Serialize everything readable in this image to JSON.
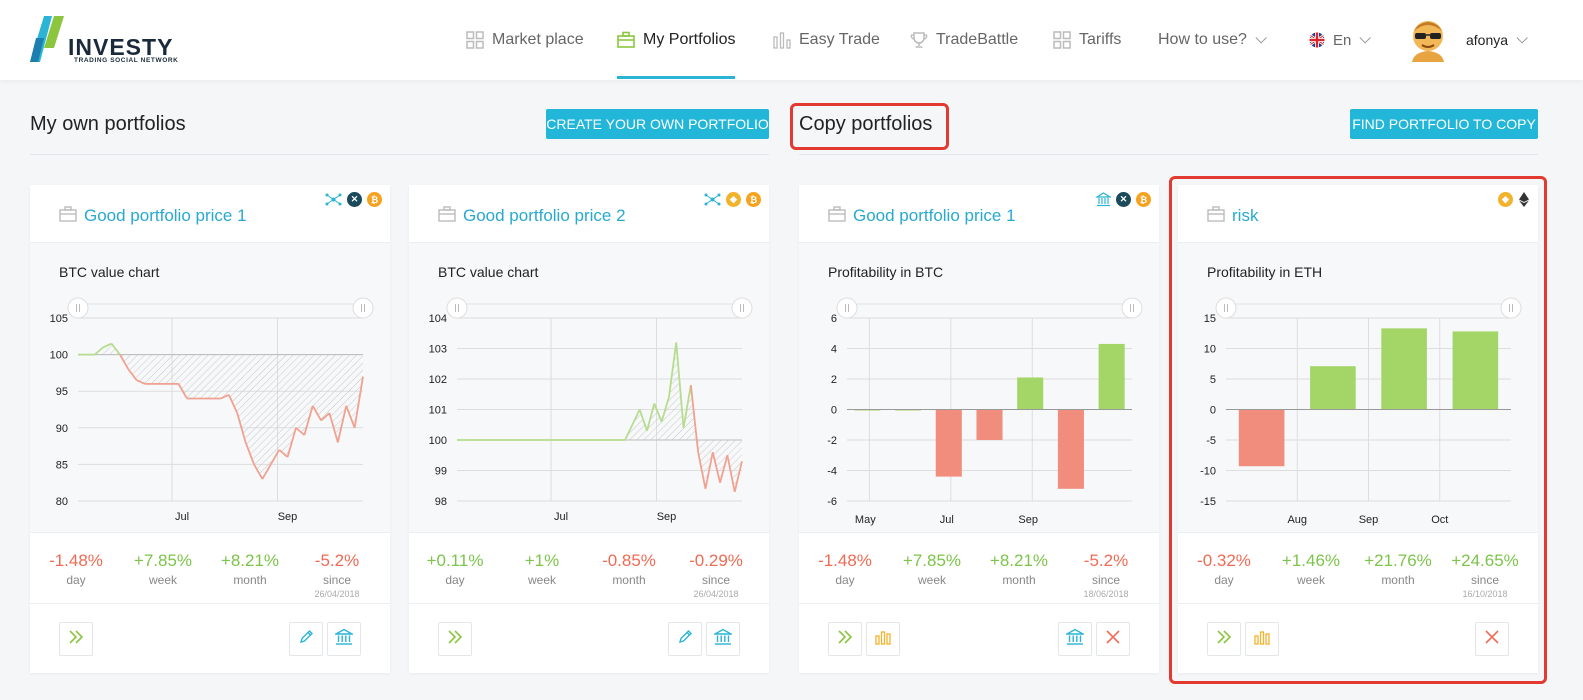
{
  "app": {
    "logo_text": "INVESTY",
    "logo_sub": "TRADING SOCIAL NETWORK"
  },
  "nav": [
    {
      "label": "Market place",
      "icon": "grid-icon"
    },
    {
      "label": "My Portfolios",
      "icon": "briefcase-icon",
      "active": true
    },
    {
      "label": "Easy Trade",
      "icon": "bars-icon"
    },
    {
      "label": "TradeBattle",
      "icon": "trophy-icon"
    },
    {
      "label": "Tariffs",
      "icon": "grid-icon"
    },
    {
      "label": "How to use?",
      "icon": "chevron-down-icon"
    }
  ],
  "lang": "En",
  "user": "afonya",
  "own": {
    "title": "My own portfolios",
    "button": "CREATE YOUR OWN PORTFOLIO"
  },
  "copy": {
    "title": "Copy portfolios",
    "button": "FIND PORTFOLIO TO COPY"
  },
  "colors": {
    "accent": "#22b7d8",
    "positive": "#7cc44a",
    "negative": "#ef6b55",
    "highlight": "#e23a30"
  },
  "cards": [
    {
      "title": "Good portfolio price 1",
      "coins": [
        "network-icon",
        "xrp-icon",
        "bitcoin-icon"
      ],
      "chart_title": "BTC value chart",
      "stats": [
        {
          "value": "-1.48%",
          "label": "day",
          "sign": "neg"
        },
        {
          "value": "+7.85%",
          "label": "week",
          "sign": "pos"
        },
        {
          "value": "+8.21%",
          "label": "month",
          "sign": "pos"
        },
        {
          "value": "-5.2%",
          "label": "since",
          "date": "26/04/2018",
          "sign": "neg"
        }
      ],
      "actions": [
        "forward-icon",
        "edit-icon",
        "bank-icon"
      ]
    },
    {
      "title": "Good portfolio price 2",
      "coins": [
        "network-icon",
        "binance-icon",
        "bitcoin-icon"
      ],
      "chart_title": "BTC value chart",
      "stats": [
        {
          "value": "+0.11%",
          "label": "day",
          "sign": "pos"
        },
        {
          "value": "+1%",
          "label": "week",
          "sign": "pos"
        },
        {
          "value": "-0.85%",
          "label": "month",
          "sign": "neg"
        },
        {
          "value": "-0.29%",
          "label": "since",
          "date": "26/04/2018",
          "sign": "neg"
        }
      ],
      "actions": [
        "forward-icon",
        "edit-icon",
        "bank-icon"
      ]
    },
    {
      "title": "Good portfolio price 1",
      "coins": [
        "bank-icon",
        "xrp-icon",
        "bitcoin-icon"
      ],
      "chart_title": "Profitability in BTC",
      "stats": [
        {
          "value": "-1.48%",
          "label": "day",
          "sign": "neg"
        },
        {
          "value": "+7.85%",
          "label": "week",
          "sign": "pos"
        },
        {
          "value": "+8.21%",
          "label": "month",
          "sign": "pos"
        },
        {
          "value": "-5.2%",
          "label": "since",
          "date": "18/06/2018",
          "sign": "neg"
        }
      ],
      "actions": [
        "forward-icon",
        "stats-icon",
        "bank-icon",
        "close-icon"
      ]
    },
    {
      "title": "risk",
      "coins": [
        "binance-icon",
        "ethereum-icon"
      ],
      "chart_title": "Profitability in ETH",
      "stats": [
        {
          "value": "-0.32%",
          "label": "day",
          "sign": "neg"
        },
        {
          "value": "+1.46%",
          "label": "week",
          "sign": "pos"
        },
        {
          "value": "+21.76%",
          "label": "month",
          "sign": "pos"
        },
        {
          "value": "+24.65%",
          "label": "since",
          "date": "16/10/2018",
          "sign": "pos"
        }
      ],
      "actions": [
        "forward-icon",
        "stats-icon",
        "close-icon"
      ]
    }
  ],
  "chart_data": [
    {
      "type": "line",
      "ylim": [
        80,
        105
      ],
      "yticks": [
        "105",
        "100",
        "95",
        "90",
        "85",
        "80"
      ],
      "xticks": [
        "Jul",
        "Sep"
      ],
      "baseline": 100,
      "series": [
        {
          "values": [
            100,
            100,
            100,
            101,
            101.5,
            100,
            98,
            96.5,
            96,
            96,
            96,
            96,
            96,
            94,
            94,
            94,
            94,
            94,
            94.5,
            92,
            88,
            85,
            83,
            85,
            87,
            86,
            90,
            89,
            93,
            91,
            92,
            88,
            93,
            90,
            97
          ]
        }
      ]
    },
    {
      "type": "line",
      "ylim": [
        98,
        104
      ],
      "yticks": [
        "104",
        "103",
        "102",
        "101",
        "100",
        "99",
        "98"
      ],
      "xticks": [
        "Jul",
        "Sep"
      ],
      "baseline": 100,
      "series": [
        {
          "values": [
            100,
            100,
            100,
            100,
            100,
            100,
            100,
            100,
            100,
            100,
            100,
            100,
            100,
            100,
            100,
            100,
            100,
            100,
            100,
            100,
            100,
            100,
            100,
            100,
            100.5,
            101,
            100.3,
            101.2,
            100.6,
            101.4,
            103.2,
            100.4,
            101.8,
            99.6,
            98.4,
            99.6,
            98.6,
            99.5,
            98.3,
            99.3
          ]
        }
      ]
    },
    {
      "type": "bar",
      "ylim": [
        -6,
        6
      ],
      "yticks": [
        "6",
        "4",
        "2",
        "0",
        "-2",
        "-4",
        "-6"
      ],
      "xticks": [
        "May",
        "Jul",
        "Sep"
      ],
      "values": [
        0,
        0,
        -4.4,
        -2,
        2.1,
        -5.2,
        4.3
      ]
    },
    {
      "type": "bar",
      "ylim": [
        -15,
        15
      ],
      "yticks": [
        "15",
        "10",
        "5",
        "0",
        "-5",
        "-10",
        "-15"
      ],
      "xticks": [
        "Aug",
        "Sep",
        "Oct"
      ],
      "values": [
        -9.3,
        7.1,
        13.3,
        12.8
      ]
    }
  ]
}
